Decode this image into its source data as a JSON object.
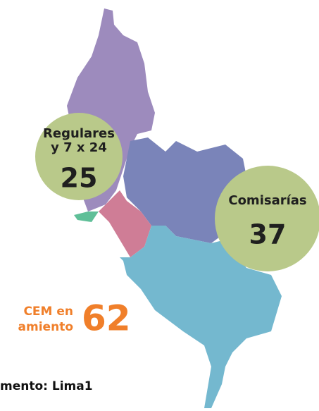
{
  "bubbles": [
    {
      "lines": [
        "Regulares",
        "y 7 x 24"
      ],
      "value": "25"
    },
    {
      "lines": [
        "Comisarías"
      ],
      "value": "37"
    }
  ],
  "cem": {
    "lines": [
      "CEM en",
      "amiento"
    ],
    "value": "62"
  },
  "footer": "mento: Lima1"
}
